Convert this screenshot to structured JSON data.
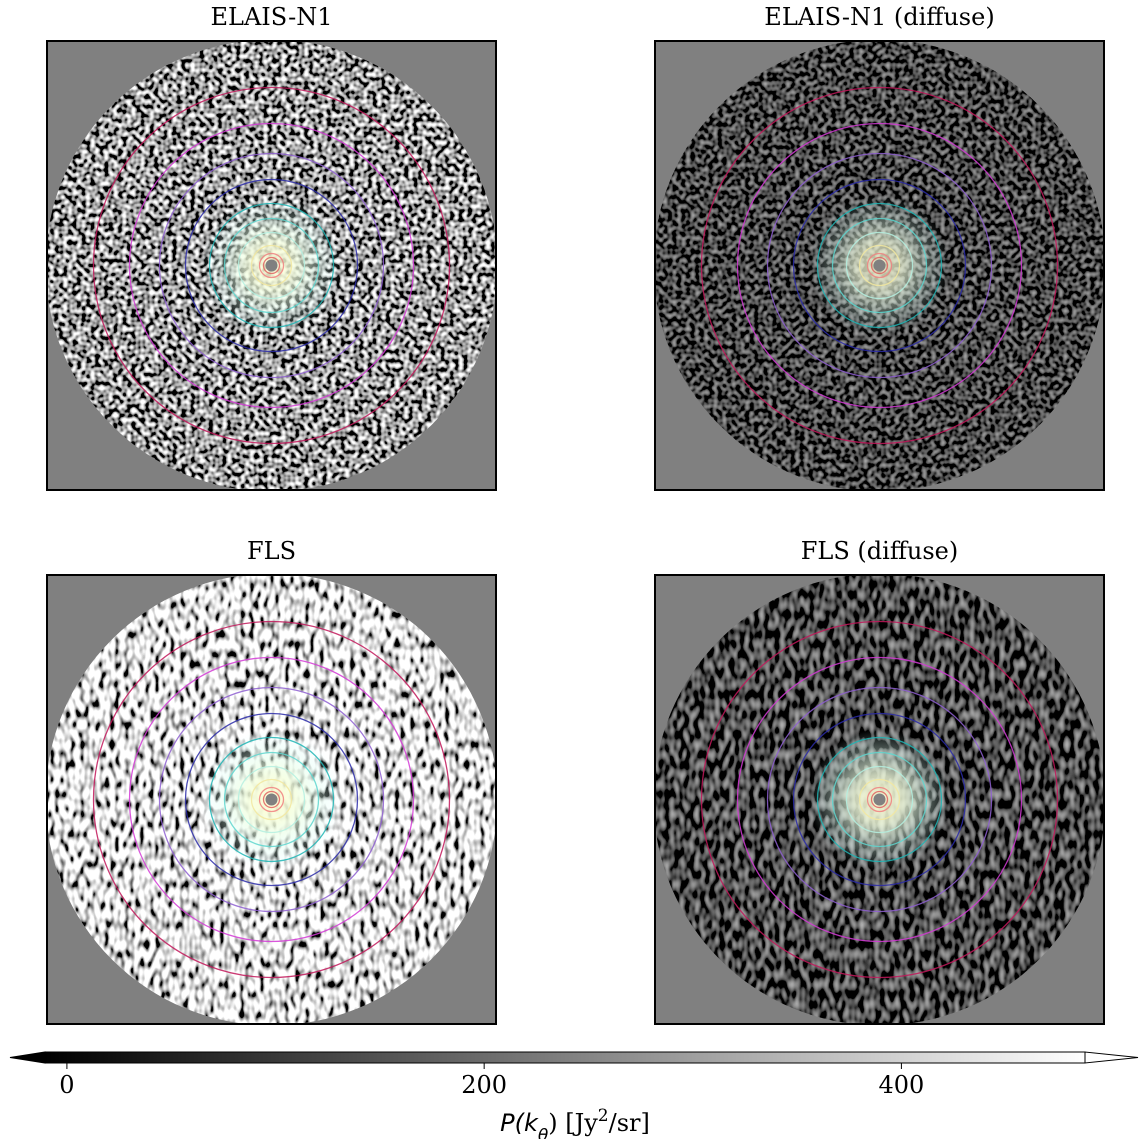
{
  "chart_data": [
    {
      "type": "image",
      "title": "ELAIS-N1"
    },
    {
      "type": "image",
      "title": "ELAIS-N1 (diffuse)"
    },
    {
      "type": "image",
      "title": "FLS"
    },
    {
      "type": "image",
      "title": "FLS (diffuse)"
    }
  ],
  "colorbar": {
    "clim": [
      -10.5,
      488
    ],
    "ticks": [
      0,
      200,
      400
    ],
    "label_parts": [
      "P(k",
      "θ",
      ") [Jy",
      "2",
      "/sr]"
    ]
  }
}
